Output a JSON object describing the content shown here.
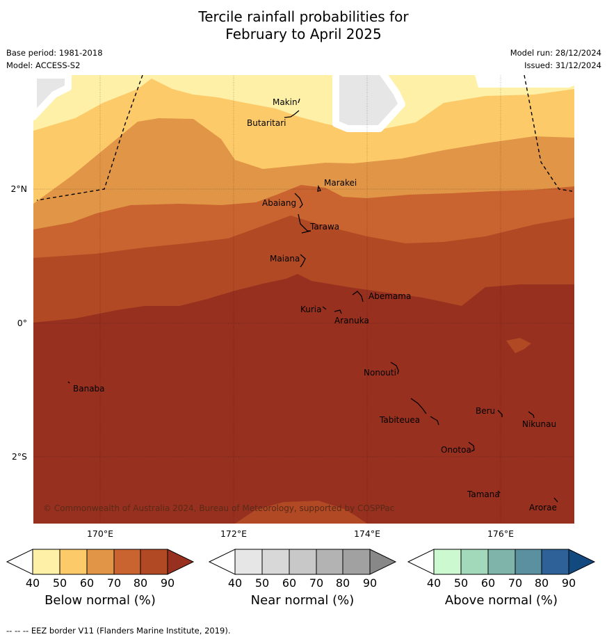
{
  "title_line1": "Tercile rainfall probabilities for",
  "title_line2": "February to April 2025",
  "base_period": "Base period: 1981-2018",
  "model": "Model: ACCESS-S2",
  "model_run": "Model run: 28/12/2024",
  "issued": "Issued: 31/12/2024",
  "lat_labels": [
    "2°N",
    "0°",
    "2°S"
  ],
  "lon_labels": [
    "170°E",
    "172°E",
    "174°E",
    "176°E"
  ],
  "places": [
    "Makin",
    "Butaritari",
    "Marakei",
    "Abaiang",
    "Tarawa",
    "Maiana",
    "Abemama",
    "Kuria",
    "Aranuka",
    "Banaba",
    "Nonouti",
    "Beru",
    "Nikunau",
    "Tabiteuea",
    "Onotoa",
    "Tamana",
    "Arorae"
  ],
  "copyright": "© Commonwealth of Australia 2024, Bureau of Meteorology, supported by COSPPac",
  "colorbars": [
    {
      "title": "Below normal (%)",
      "ticks": [
        "40",
        "50",
        "60",
        "70",
        "80",
        "90"
      ],
      "colors": [
        "#fef0a6",
        "#fdca6a",
        "#e19547",
        "#c9632f",
        "#b04924",
        "#97301f"
      ]
    },
    {
      "title": "Near normal (%)",
      "ticks": [
        "40",
        "50",
        "60",
        "70",
        "80",
        "90"
      ],
      "colors": [
        "#e6e6e6",
        "#d8d8d8",
        "#c8c8c8",
        "#b3b3b3",
        "#a1a1a1",
        "#888888"
      ]
    },
    {
      "title": "Above normal (%)",
      "ticks": [
        "40",
        "50",
        "60",
        "70",
        "80",
        "90"
      ],
      "colors": [
        "#ccf9d0",
        "#a3d9bb",
        "#7fb4aa",
        "#5b90a0",
        "#2e6198",
        "#124a80"
      ]
    }
  ],
  "footnote": "-- -- -- EEZ border V11 (Flanders Marine Institute, 2019)."
}
